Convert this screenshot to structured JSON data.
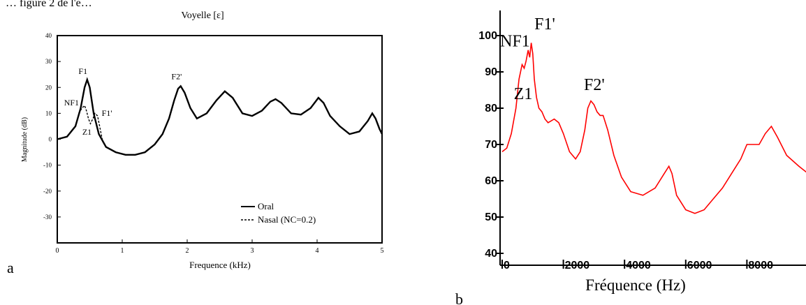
{
  "header_fragment": "… figure 2 de l'e…",
  "panel_labels": {
    "a": "a",
    "b": "b"
  },
  "chart_data": [
    {
      "type": "line",
      "title": "Voyelle [ɛ]",
      "xlabel": "Frequence (kHz)",
      "ylabel": "Magnitude (dB)",
      "xlim": [
        0,
        5
      ],
      "ylim": [
        -40,
        40
      ],
      "x_ticks": [
        0,
        1,
        2,
        3,
        4,
        5
      ],
      "y_ticks": [
        -30,
        -20,
        -10,
        0,
        10,
        20,
        30,
        40
      ],
      "grid": false,
      "legend_position": "bottom-right",
      "series": [
        {
          "name": "Oral",
          "style": "solid",
          "color": "#000000",
          "x": [
            0,
            0.15,
            0.28,
            0.36,
            0.42,
            0.46,
            0.5,
            0.56,
            0.64,
            0.75,
            0.9,
            1.05,
            1.2,
            1.35,
            1.5,
            1.62,
            1.72,
            1.8,
            1.86,
            1.9,
            1.96,
            2.05,
            2.15,
            2.3,
            2.45,
            2.58,
            2.7,
            2.85,
            3.0,
            3.15,
            3.28,
            3.36,
            3.45,
            3.6,
            3.75,
            3.9,
            4.02,
            4.1,
            4.2,
            4.35,
            4.5,
            4.65,
            4.78,
            4.85,
            4.9,
            4.96,
            5.0
          ],
          "y": [
            0,
            1,
            5,
            12,
            20,
            23,
            20,
            10,
            2,
            -3,
            -5,
            -6,
            -6,
            -5,
            -2,
            2,
            8,
            15,
            19.5,
            20.5,
            18,
            12,
            8,
            10,
            15,
            18.5,
            16,
            10,
            9,
            11,
            14.5,
            15.5,
            14,
            10,
            9.5,
            12,
            16,
            14,
            9,
            5,
            2,
            3,
            7,
            10,
            8,
            4,
            2
          ]
        },
        {
          "name": "Nasal (NC=0.2)",
          "style": "dashed",
          "color": "#000000",
          "x": [
            0.33,
            0.38,
            0.42,
            0.45,
            0.48,
            0.51,
            0.55,
            0.58,
            0.62,
            0.66,
            0.7
          ],
          "y": [
            10,
            12,
            13,
            11,
            8,
            6,
            8,
            10,
            9,
            4,
            -1
          ]
        }
      ],
      "annotations": [
        {
          "text": "F1",
          "x": 0.46,
          "y": 23
        },
        {
          "text": "NF1",
          "x": 0.42,
          "y": 13
        },
        {
          "text": "F1'",
          "x": 0.62,
          "y": 9
        },
        {
          "text": "Z1",
          "x": 0.5,
          "y": 6
        },
        {
          "text": "F2'",
          "x": 1.88,
          "y": 20.5
        }
      ]
    },
    {
      "type": "line",
      "title": "",
      "xlabel": "Fréquence (Hz)",
      "ylabel": "",
      "xlim": [
        0,
        10000
      ],
      "ylim": [
        40,
        110
      ],
      "x_ticks": [
        0,
        2000,
        4000,
        6000,
        8000
      ],
      "y_ticks": [
        40,
        50,
        60,
        70,
        80,
        90,
        100
      ],
      "grid": false,
      "series": [
        {
          "name": "",
          "color": "#ff0000",
          "x": [
            0,
            150,
            300,
            450,
            550,
            650,
            720,
            780,
            850,
            900,
            950,
            1000,
            1050,
            1120,
            1200,
            1300,
            1400,
            1500,
            1700,
            1850,
            2000,
            2200,
            2400,
            2550,
            2700,
            2800,
            2900,
            3000,
            3100,
            3200,
            3300,
            3450,
            3650,
            3900,
            4200,
            4600,
            5000,
            5300,
            5450,
            5550,
            5700,
            6000,
            6300,
            6600,
            6900,
            7200,
            7500,
            7800,
            8000,
            8200,
            8400,
            8600,
            8800,
            9000,
            9300,
            9700,
            10000
          ],
          "y": [
            68,
            69,
            73,
            80,
            88,
            92,
            91,
            93,
            96,
            94,
            98,
            95,
            88,
            83,
            80,
            79,
            77,
            76,
            77,
            76,
            73,
            68,
            66,
            68,
            74,
            80,
            82,
            81,
            79,
            78,
            78,
            74,
            67,
            61,
            57,
            56,
            58,
            62,
            64,
            62,
            56,
            52,
            51,
            52,
            55,
            58,
            62,
            66,
            70,
            70,
            70,
            73,
            75,
            72,
            67,
            64,
            62
          ]
        }
      ],
      "annotations": [
        {
          "text": "NF1",
          "x": 300,
          "y": 97
        },
        {
          "text": "F1'",
          "x": 1100,
          "y": 101
        },
        {
          "text": "Z1",
          "x": 700,
          "y": 84
        },
        {
          "text": "F2'",
          "x": 2900,
          "y": 85
        }
      ]
    }
  ]
}
